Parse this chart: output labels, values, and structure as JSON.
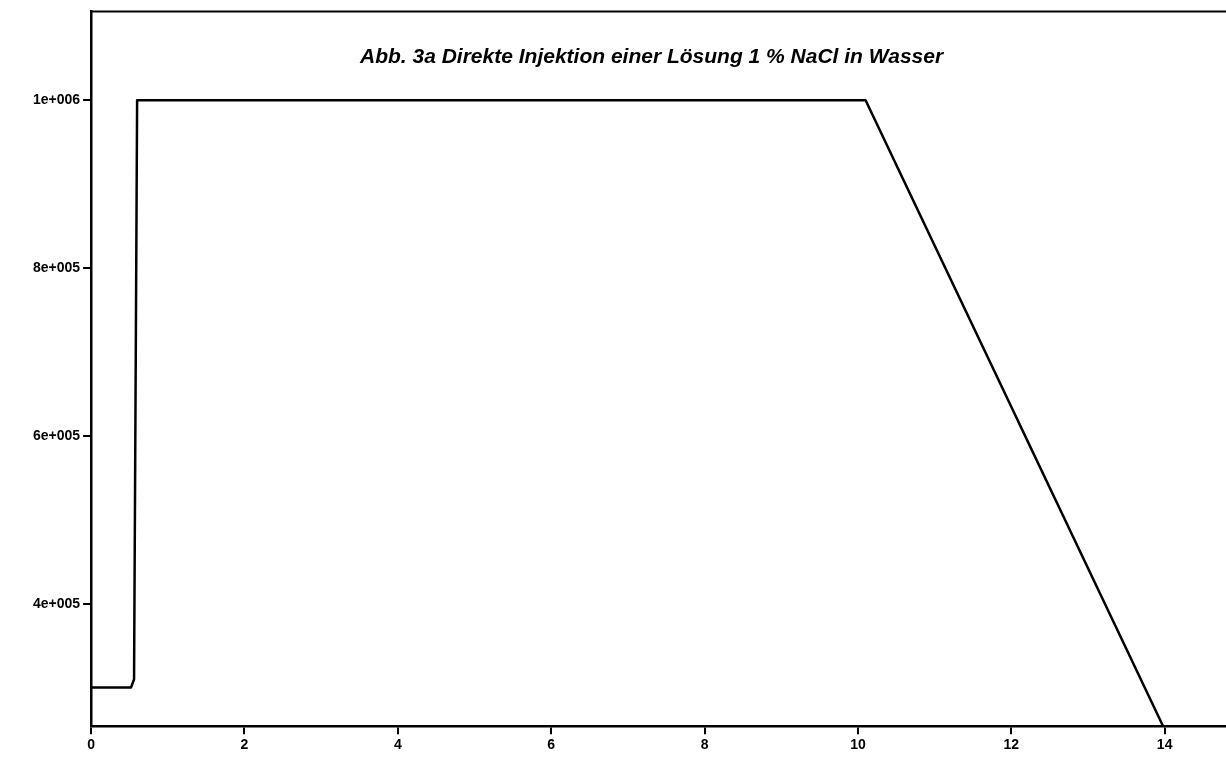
{
  "chart_data": {
    "type": "line",
    "title": "Abb. 3a  Direkte Injektion einer Lösung 1 % NaCl in Wasser",
    "series": [
      {
        "color": "#000000",
        "x": [
          0,
          0.52,
          0.56,
          0.6,
          10.1,
          13.98
        ],
        "values": [
          300000,
          300000,
          310000,
          1000000,
          1000000,
          254000
        ]
      }
    ],
    "xlim": [
      0,
      14.8
    ],
    "ylim": [
      254000,
      1106000
    ],
    "xticks": [
      0,
      2,
      4,
      6,
      8,
      10,
      12,
      14
    ],
    "yticks": [
      {
        "value": 400000,
        "label": "4e+005"
      },
      {
        "value": 600000,
        "label": "6e+005"
      },
      {
        "value": 800000,
        "label": "8e+005"
      },
      {
        "value": 1000000,
        "label": "1e+006"
      }
    ],
    "grid": false,
    "legend": false,
    "marker": "none",
    "line_style": "solid"
  }
}
